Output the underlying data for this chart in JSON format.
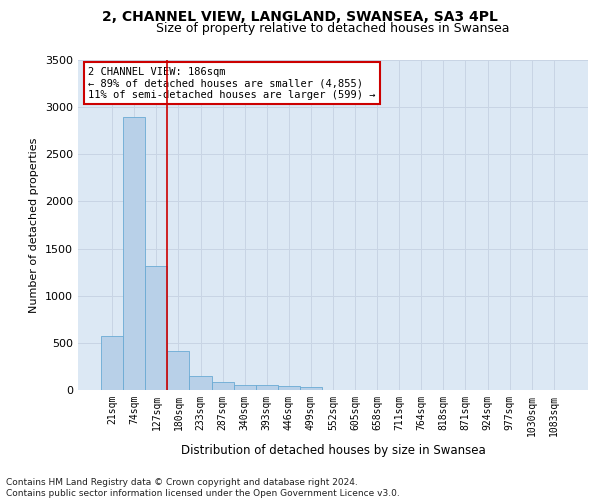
{
  "title1": "2, CHANNEL VIEW, LANGLAND, SWANSEA, SA3 4PL",
  "title2": "Size of property relative to detached houses in Swansea",
  "xlabel": "Distribution of detached houses by size in Swansea",
  "ylabel": "Number of detached properties",
  "footnote1": "Contains HM Land Registry data © Crown copyright and database right 2024.",
  "footnote2": "Contains public sector information licensed under the Open Government Licence v3.0.",
  "annotation_line1": "2 CHANNEL VIEW: 186sqm",
  "annotation_line2": "← 89% of detached houses are smaller (4,855)",
  "annotation_line3": "11% of semi-detached houses are larger (599) →",
  "bar_labels": [
    "21sqm",
    "74sqm",
    "127sqm",
    "180sqm",
    "233sqm",
    "287sqm",
    "340sqm",
    "393sqm",
    "446sqm",
    "499sqm",
    "552sqm",
    "605sqm",
    "658sqm",
    "711sqm",
    "764sqm",
    "818sqm",
    "871sqm",
    "924sqm",
    "977sqm",
    "1030sqm",
    "1083sqm"
  ],
  "bar_values": [
    570,
    2900,
    1320,
    410,
    150,
    80,
    55,
    50,
    40,
    35,
    0,
    0,
    0,
    0,
    0,
    0,
    0,
    0,
    0,
    0,
    0
  ],
  "bar_color": "#b8d0e8",
  "bar_edge_color": "#6aaad4",
  "vline_x": 2.5,
  "vline_color": "#cc0000",
  "ylim": [
    0,
    3500
  ],
  "yticks": [
    0,
    500,
    1000,
    1500,
    2000,
    2500,
    3000,
    3500
  ],
  "grid_color": "#c8d4e4",
  "background_color": "#dce8f4",
  "annotation_box_facecolor": "#ffffff",
  "annotation_box_edgecolor": "#cc0000",
  "title1_fontsize": 10,
  "title2_fontsize": 9,
  "tick_fontsize": 7,
  "xlabel_fontsize": 8.5,
  "ylabel_fontsize": 8,
  "annotation_fontsize": 7.5,
  "footnote_fontsize": 6.5
}
